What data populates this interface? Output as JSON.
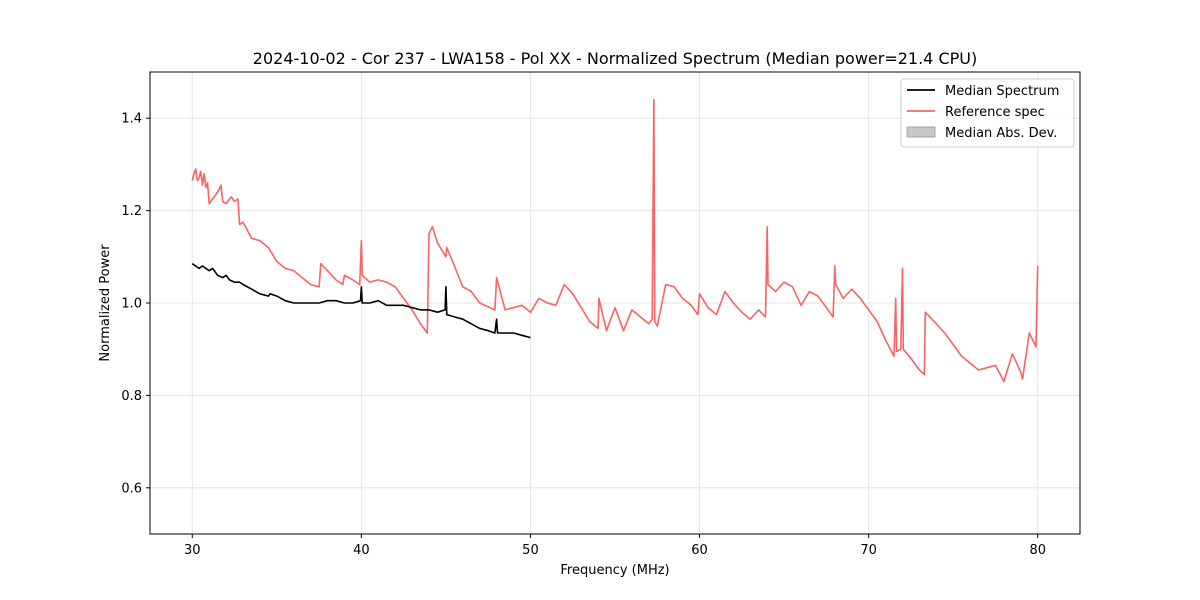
{
  "chart_data": {
    "type": "line",
    "title": "2024-10-02 - Cor 237 - LWA158 - Pol XX - Normalized Spectrum (Median power=21.4 CPU)",
    "xlabel": "Frequency (MHz)",
    "ylabel": "Normalized Power",
    "xlim": [
      27.5,
      82.5
    ],
    "ylim": [
      0.5,
      1.5
    ],
    "xticks": [
      30,
      40,
      50,
      60,
      70,
      80
    ],
    "yticks": [
      0.6,
      0.8,
      1.0,
      1.2,
      1.4
    ],
    "xtick_labels": [
      "30",
      "40",
      "50",
      "60",
      "70",
      "80"
    ],
    "ytick_labels": [
      "0.6",
      "0.8",
      "1.0",
      "1.2",
      "1.4"
    ],
    "grid": true,
    "legend_position": "top-right",
    "legend": [
      {
        "label": "Median Spectrum",
        "kind": "line",
        "color": "#000000"
      },
      {
        "label": "Reference spec",
        "kind": "line",
        "color": "#f86464"
      },
      {
        "label": "Median Abs. Dev.",
        "kind": "patch",
        "color": "#c8c8c8"
      }
    ],
    "series": [
      {
        "name": "Reference spec",
        "color": "#f86464",
        "x": [
          30.0,
          30.1,
          30.2,
          30.3,
          30.4,
          30.5,
          30.6,
          30.7,
          30.8,
          30.9,
          31.0,
          31.2,
          31.5,
          31.7,
          31.8,
          32.0,
          32.1,
          32.3,
          32.5,
          32.7,
          32.8,
          33.0,
          33.5,
          34.0,
          34.5,
          35.0,
          35.5,
          36.0,
          36.5,
          37.0,
          37.5,
          37.6,
          38.0,
          38.5,
          38.9,
          39.0,
          39.5,
          39.9,
          40.0,
          40.05,
          40.5,
          41.0,
          41.5,
          42.0,
          42.5,
          43.0,
          43.5,
          43.9,
          44.0,
          44.2,
          44.5,
          45.0,
          45.05,
          45.5,
          46.0,
          46.5,
          47.0,
          47.9,
          48.0,
          48.5,
          49.0,
          49.5,
          50.0,
          50.5,
          51.0,
          51.5,
          52.0,
          52.5,
          53.0,
          53.5,
          54.0,
          54.05,
          54.5,
          55.0,
          55.5,
          56.0,
          56.5,
          57.0,
          57.2,
          57.3,
          57.35,
          57.5,
          58.0,
          58.5,
          59.0,
          59.5,
          59.9,
          60.0,
          60.5,
          61.0,
          61.5,
          62.0,
          62.5,
          63.0,
          63.5,
          63.9,
          64.0,
          64.05,
          64.5,
          65.0,
          65.5,
          66.0,
          66.5,
          67.0,
          67.5,
          67.9,
          68.0,
          68.05,
          68.5,
          69.0,
          69.5,
          70.0,
          70.5,
          71.0,
          71.5,
          71.6,
          71.65,
          71.9,
          72.0,
          72.05,
          72.5,
          73.0,
          73.3,
          73.35,
          74.0,
          74.5,
          75.0,
          75.5,
          76.0,
          76.5,
          77.0,
          77.5,
          78.0,
          78.5,
          79.0,
          79.1,
          79.5,
          79.9,
          80.0
        ],
        "y": [
          1.265,
          1.28,
          1.29,
          1.265,
          1.27,
          1.285,
          1.255,
          1.28,
          1.25,
          1.26,
          1.215,
          1.225,
          1.24,
          1.255,
          1.22,
          1.215,
          1.22,
          1.23,
          1.22,
          1.225,
          1.17,
          1.175,
          1.14,
          1.135,
          1.12,
          1.09,
          1.075,
          1.07,
          1.055,
          1.04,
          1.035,
          1.085,
          1.07,
          1.05,
          1.04,
          1.06,
          1.05,
          1.04,
          1.135,
          1.06,
          1.045,
          1.05,
          1.045,
          1.035,
          1.01,
          0.985,
          0.955,
          0.935,
          1.15,
          1.165,
          1.13,
          1.1,
          1.12,
          1.08,
          1.035,
          1.025,
          1.0,
          0.985,
          1.055,
          0.985,
          0.99,
          0.995,
          0.98,
          1.01,
          1.0,
          0.995,
          1.04,
          1.02,
          0.99,
          0.96,
          0.945,
          1.01,
          0.94,
          0.99,
          0.94,
          0.985,
          0.97,
          0.955,
          0.965,
          1.44,
          0.96,
          0.95,
          1.04,
          1.035,
          1.01,
          0.995,
          0.975,
          1.02,
          0.99,
          0.975,
          1.025,
          1.0,
          0.98,
          0.965,
          0.985,
          0.97,
          1.165,
          1.04,
          1.025,
          1.045,
          1.035,
          0.995,
          1.025,
          1.015,
          0.99,
          0.97,
          1.08,
          1.04,
          1.01,
          1.03,
          1.01,
          0.985,
          0.96,
          0.92,
          0.885,
          1.01,
          0.895,
          0.9,
          1.075,
          0.9,
          0.88,
          0.855,
          0.845,
          0.98,
          0.955,
          0.935,
          0.91,
          0.885,
          0.87,
          0.855,
          0.86,
          0.865,
          0.83,
          0.89,
          0.85,
          0.835,
          0.935,
          0.905,
          1.08
        ]
      },
      {
        "name": "Median Spectrum",
        "color": "#000000",
        "x": [
          30.0,
          30.2,
          30.4,
          30.6,
          30.8,
          31.0,
          31.2,
          31.5,
          31.8,
          32.0,
          32.2,
          32.5,
          32.8,
          33.0,
          33.5,
          34.0,
          34.5,
          34.6,
          35.0,
          35.5,
          36.0,
          36.5,
          37.0,
          37.5,
          38.0,
          38.5,
          39.0,
          39.5,
          39.95,
          40.0,
          40.05,
          40.5,
          41.0,
          41.5,
          42.0,
          42.5,
          43.0,
          43.5,
          44.0,
          44.5,
          44.95,
          45.0,
          45.05,
          45.5,
          46.0,
          46.5,
          47.0,
          47.5,
          47.9,
          48.0,
          48.05,
          48.5,
          49.0,
          49.5,
          50.0
        ],
        "y": [
          1.085,
          1.08,
          1.075,
          1.08,
          1.075,
          1.07,
          1.075,
          1.06,
          1.055,
          1.06,
          1.05,
          1.045,
          1.045,
          1.04,
          1.03,
          1.02,
          1.015,
          1.02,
          1.015,
          1.005,
          1.0,
          1.0,
          1.0,
          1.0,
          1.005,
          1.005,
          1.0,
          1.0,
          1.005,
          1.035,
          1.0,
          1.0,
          1.005,
          0.995,
          0.995,
          0.995,
          0.99,
          0.985,
          0.985,
          0.98,
          0.985,
          1.035,
          0.975,
          0.97,
          0.965,
          0.955,
          0.945,
          0.94,
          0.935,
          0.965,
          0.935,
          0.935,
          0.935,
          0.93,
          0.925
        ]
      }
    ]
  }
}
